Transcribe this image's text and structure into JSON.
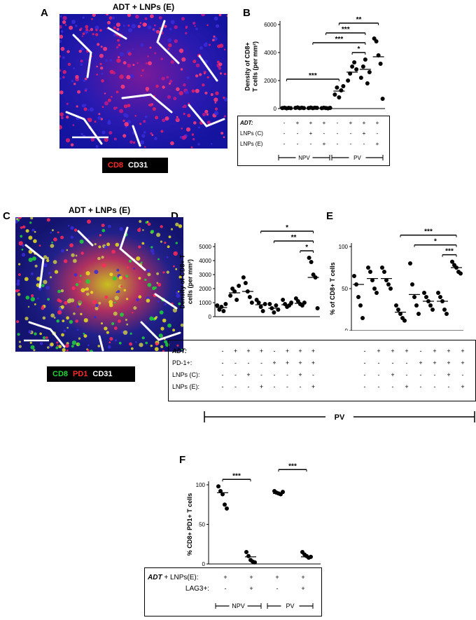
{
  "panels": {
    "A": {
      "label": "A",
      "title": "ADT + LNPs (E)",
      "legend": [
        {
          "text": "CD8",
          "color": "#ff2a2a"
        },
        {
          "text": "CD31",
          "color": "#ffffff"
        }
      ]
    },
    "C": {
      "label": "C",
      "title": "ADT + LNPs (E)",
      "legend": [
        {
          "text": "CD8",
          "color": "#1fd43a"
        },
        {
          "text": "PD1",
          "color": "#ff2a2a"
        },
        {
          "text": "CD31",
          "color": "#ffffff"
        }
      ]
    },
    "B": {
      "label": "B"
    },
    "D": {
      "label": "D"
    },
    "E": {
      "label": "E"
    },
    "F": {
      "label": "F"
    }
  },
  "chart_data": [
    {
      "id": "B",
      "type": "scatter",
      "ylabel": [
        "Density of CD8+",
        "T cells (per mm²)"
      ],
      "ylim": [
        0,
        6000
      ],
      "yticks": [
        0,
        2000,
        4000,
        6000
      ],
      "groups": [
        {
          "points": [
            40,
            60,
            20,
            50,
            30
          ],
          "mean": 40
        },
        {
          "points": [
            50,
            80,
            30,
            60,
            40
          ],
          "mean": 50
        },
        {
          "points": [
            40,
            70,
            30,
            60,
            50
          ],
          "mean": 50
        },
        {
          "points": [
            30,
            60,
            40,
            20,
            50
          ],
          "mean": 40
        },
        {
          "points": [
            1000,
            1500,
            800,
            1300,
            1600
          ],
          "mean": 1250
        },
        {
          "points": [
            2000,
            2500,
            3000,
            3300,
            2800
          ],
          "mean": 2600
        },
        {
          "points": [
            2200,
            3000,
            3500,
            1800,
            2600
          ],
          "mean": 2800
        },
        {
          "points": [
            5000,
            4800,
            3800,
            3200,
            700
          ],
          "mean": 3700
        }
      ],
      "sig": [
        {
          "from": 1,
          "to": 5,
          "label": "***"
        },
        {
          "from": 6,
          "to": 7,
          "label": "*"
        },
        {
          "from": 3,
          "to": 7,
          "label": "***"
        },
        {
          "from": 4,
          "to": 7,
          "label": "***"
        },
        {
          "from": 5,
          "to": 8,
          "label": "**"
        }
      ],
      "table": {
        "rows": [
          {
            "label": "ADT:",
            "italic": true,
            "values": [
              "-",
              "+",
              "+",
              "+",
              "-",
              "+",
              "+",
              "+"
            ]
          },
          {
            "label": "LNPs (C)",
            "values": [
              "-",
              "-",
              "+",
              "-",
              "-",
              "-",
              "+",
              "-"
            ]
          },
          {
            "label": "LNPs (E)",
            "values": [
              "-",
              "-",
              "-",
              "+",
              "-",
              "-",
              "-",
              "+"
            ]
          }
        ],
        "brackets": [
          {
            "label": "NPV",
            "from": 1,
            "to": 4
          },
          {
            "label": "PV",
            "from": 5,
            "to": 8
          }
        ]
      }
    },
    {
      "id": "D",
      "type": "scatter",
      "ylabel": [
        "Density of CD8+ T",
        "cells (per mm²)"
      ],
      "ylim": [
        0,
        5000
      ],
      "yticks": [
        0,
        1000,
        2000,
        3000,
        4000,
        5000
      ],
      "groups": [
        {
          "points": [
            800,
            500,
            700,
            400,
            900
          ],
          "mean": 650
        },
        {
          "points": [
            1500,
            2000,
            1800,
            1200,
            2200
          ],
          "mean": 1700
        },
        {
          "points": [
            2800,
            2400,
            1800,
            1400,
            1000
          ],
          "mean": 1800
        },
        {
          "points": [
            1200,
            1000,
            700,
            400,
            900
          ],
          "mean": 850
        },
        {
          "points": [
            900,
            600,
            300,
            800,
            500
          ],
          "mean": 600
        },
        {
          "points": [
            1200,
            900,
            700,
            800,
            1000
          ],
          "mean": 850
        },
        {
          "points": [
            1300,
            1100,
            900,
            800,
            1000
          ],
          "mean": 950
        },
        {
          "points": [
            4200,
            3900,
            3000,
            2800,
            600
          ],
          "mean": 2800
        }
      ],
      "sig": [
        {
          "from": 7,
          "to": 8,
          "label": "*"
        },
        {
          "from": 5,
          "to": 8,
          "label": "**"
        },
        {
          "from": 4,
          "to": 8,
          "label": "*"
        }
      ]
    },
    {
      "id": "E",
      "type": "scatter",
      "ylabel": [
        "% of CD8+ T cells"
      ],
      "ylim": [
        0,
        100
      ],
      "yticks": [
        0,
        50,
        100
      ],
      "groups": [
        {
          "points": [
            65,
            55,
            40,
            30,
            15
          ],
          "mean": 55
        },
        {
          "points": [
            75,
            70,
            60,
            50,
            45
          ],
          "mean": 62
        },
        {
          "points": [
            75,
            70,
            60,
            55,
            50
          ],
          "mean": 62
        },
        {
          "points": [
            30,
            25,
            20,
            15,
            12
          ],
          "mean": 22
        },
        {
          "points": [
            80,
            55,
            40,
            30,
            20
          ],
          "mean": 43
        },
        {
          "points": [
            45,
            40,
            35,
            30,
            25
          ],
          "mean": 35
        },
        {
          "points": [
            45,
            40,
            35,
            25,
            20
          ],
          "mean": 35
        },
        {
          "points": [
            82,
            78,
            75,
            70,
            68
          ],
          "mean": 75
        }
      ],
      "sig": [
        {
          "from": 7,
          "to": 8,
          "label": "***"
        },
        {
          "from": 5,
          "to": 8,
          "label": "*"
        },
        {
          "from": 4,
          "to": 8,
          "label": "***"
        }
      ]
    },
    {
      "id": "F",
      "type": "scatter",
      "ylabel": [
        "% CD8+ PD1+ T cells"
      ],
      "ylim": [
        0,
        100
      ],
      "yticks": [
        0,
        50,
        100
      ],
      "groups": [
        {
          "points": [
            98,
            92,
            88,
            75,
            70
          ],
          "mean": 90
        },
        {
          "points": [
            15,
            10,
            5,
            3,
            2
          ],
          "mean": 9
        },
        {
          "points": [
            92,
            90,
            89,
            88,
            91
          ],
          "mean": 89
        },
        {
          "points": [
            15,
            12,
            10,
            8,
            9
          ],
          "mean": 9
        }
      ],
      "sig": [
        {
          "from": 1,
          "to": 2,
          "label": "***"
        },
        {
          "from": 3,
          "to": 4,
          "label": "***"
        }
      ]
    }
  ],
  "de_table": {
    "rows": [
      {
        "label": "ADT:",
        "italic": true,
        "values": [
          "-",
          "+",
          "+",
          "+",
          "-",
          "+",
          "+",
          "+"
        ]
      },
      {
        "label": "PD-1+:",
        "values": [
          "-",
          "-",
          "-",
          "-",
          "+",
          "+",
          "+",
          "+"
        ]
      },
      {
        "label": "LNPs (C):",
        "values": [
          "-",
          "-",
          "+",
          "-",
          "-",
          "-",
          "+",
          "-"
        ]
      },
      {
        "label": "LNPs (E):",
        "values": [
          "-",
          "-",
          "-",
          "+",
          "-",
          "-",
          "-",
          "+"
        ]
      }
    ],
    "pv_label": "PV"
  },
  "f_table": {
    "row1": {
      "label_italic": "ADT",
      "label_rest": " + LNPs(E):",
      "values": [
        "+",
        "+",
        "+",
        "+"
      ]
    },
    "row2": {
      "label": "LAG3+:",
      "values": [
        "-",
        "+",
        "-",
        "+"
      ]
    },
    "brackets": [
      {
        "label": "NPV"
      },
      {
        "label": "PV"
      }
    ]
  }
}
